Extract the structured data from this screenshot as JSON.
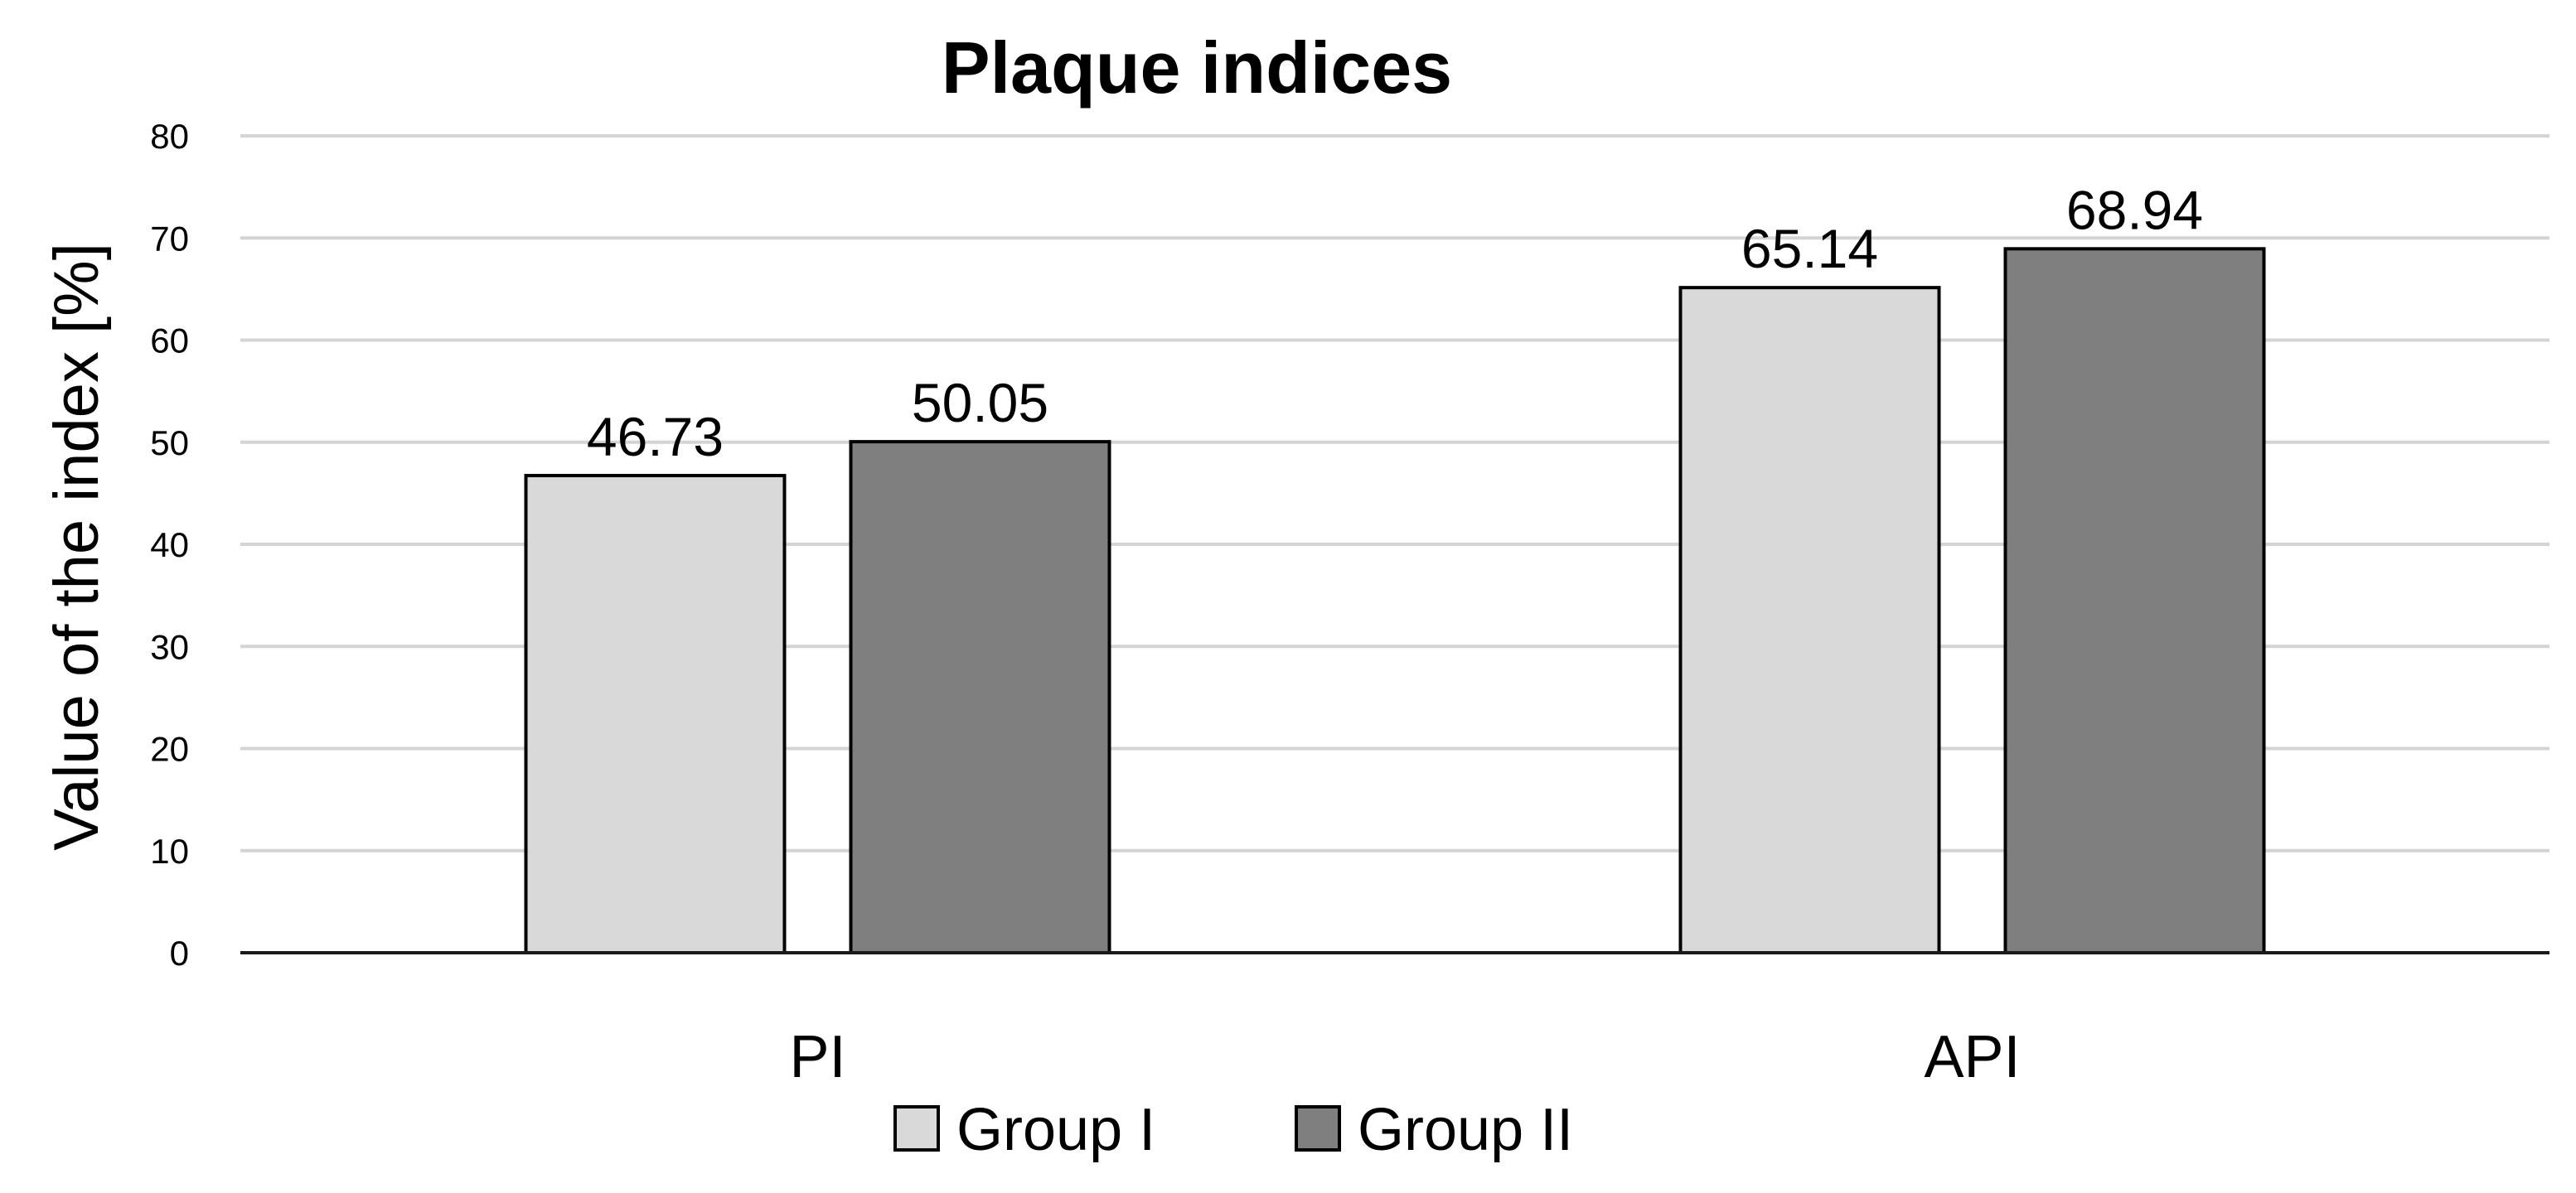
{
  "chart_data": {
    "type": "bar",
    "title": "Plaque indices",
    "xlabel": "",
    "ylabel": "Value of the index [%]",
    "categories": [
      "PI",
      "API"
    ],
    "series": [
      {
        "name": "Group I",
        "values": [
          46.73,
          65.14
        ],
        "labels": [
          "46.73",
          "65.14"
        ],
        "color": "#d9d9d9"
      },
      {
        "name": "Group II",
        "values": [
          50.05,
          68.94
        ],
        "labels": [
          "50.05",
          "68.94"
        ],
        "color": "#7f7f7f"
      }
    ],
    "ylim": [
      0,
      80
    ],
    "yticks": [
      0,
      10,
      20,
      30,
      40,
      50,
      60,
      70,
      80
    ],
    "grid": true,
    "legend_position": "bottom"
  }
}
